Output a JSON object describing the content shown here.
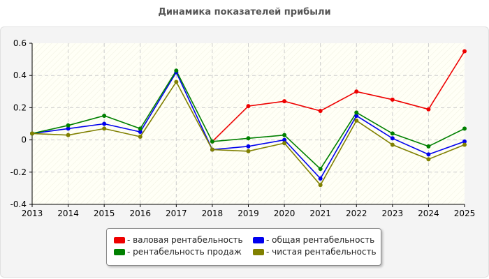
{
  "chart_data": {
    "type": "line",
    "title": "Динамика показателей прибыли",
    "xlabel": "",
    "ylabel": "",
    "x": [
      "2013",
      "2014",
      "2015",
      "2016",
      "2017",
      "2018",
      "2019",
      "2020",
      "2021",
      "2022",
      "2023",
      "2024",
      "2025"
    ],
    "ylim": [
      -0.4,
      0.6
    ],
    "yticks": [
      "0.6",
      "0.4",
      "0.2",
      "0",
      "-0.2",
      "-0.4"
    ],
    "grid": true,
    "legend_position": "bottom-center",
    "series": [
      {
        "name": "- валовая рентабельность",
        "color": "#ee0000",
        "values": [
          null,
          null,
          null,
          null,
          null,
          -0.01,
          0.21,
          0.24,
          0.18,
          0.3,
          0.25,
          0.19,
          0.55
        ]
      },
      {
        "name": "- общая рентабельность",
        "color": "#0000ee",
        "values": [
          0.04,
          0.07,
          0.1,
          0.05,
          0.42,
          -0.06,
          -0.04,
          0.0,
          -0.24,
          0.15,
          0.01,
          -0.09,
          -0.01
        ]
      },
      {
        "name": "- рентабельность продаж",
        "color": "#008000",
        "values": [
          0.04,
          0.09,
          0.15,
          0.07,
          0.43,
          -0.01,
          0.01,
          0.03,
          -0.18,
          0.17,
          0.04,
          -0.04,
          0.07
        ]
      },
      {
        "name": "- чистая рентабельность",
        "color": "#808000",
        "values": [
          0.04,
          0.03,
          0.07,
          0.02,
          0.36,
          -0.06,
          -0.07,
          -0.02,
          -0.28,
          0.12,
          -0.03,
          -0.12,
          -0.03
        ]
      }
    ]
  }
}
